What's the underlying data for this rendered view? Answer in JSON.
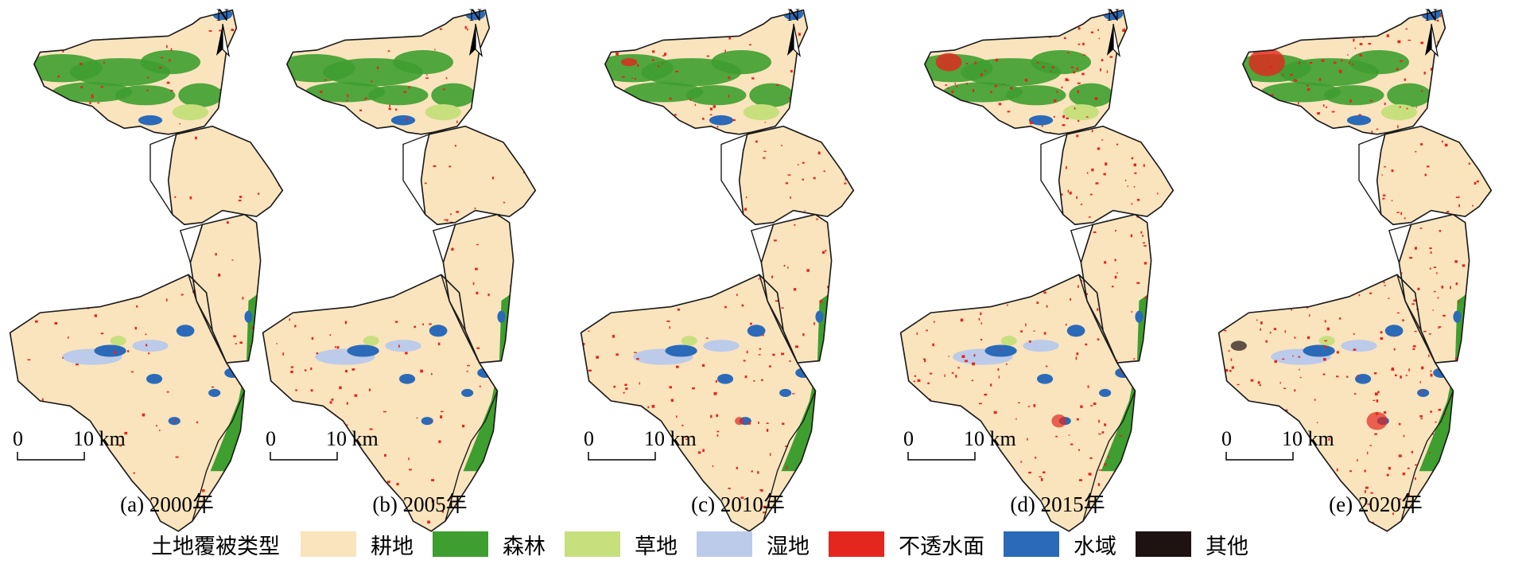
{
  "panels": [
    {
      "caption": "(a) 2000年",
      "scale_zero": "0",
      "scale_end": "10 km",
      "north": "N",
      "impervious_level": 1
    },
    {
      "caption": "(b) 2005年",
      "scale_zero": "0",
      "scale_end": "10 km",
      "north": "N",
      "impervious_level": 2
    },
    {
      "caption": "(c) 2010年",
      "scale_zero": "0",
      "scale_end": "10 km",
      "north": "N",
      "impervious_level": 3
    },
    {
      "caption": "(d) 2015年",
      "scale_zero": "0",
      "scale_end": "10 km",
      "north": "N",
      "impervious_level": 4
    },
    {
      "caption": "(e) 2020年",
      "scale_zero": "0",
      "scale_end": "10 km",
      "north": "N",
      "impervious_level": 5
    }
  ],
  "legend": {
    "title": "土地覆被类型",
    "items": [
      {
        "label": "耕地",
        "color": "#f9e4bd"
      },
      {
        "label": "森林",
        "color": "#3e9e2f"
      },
      {
        "label": "草地",
        "color": "#c8df7e"
      },
      {
        "label": "湿地",
        "color": "#bccbe9"
      },
      {
        "label": "不透水面",
        "color": "#e4261e"
      },
      {
        "label": "水域",
        "color": "#2b6ab8"
      },
      {
        "label": "其他",
        "color": "#1e1212"
      }
    ]
  }
}
